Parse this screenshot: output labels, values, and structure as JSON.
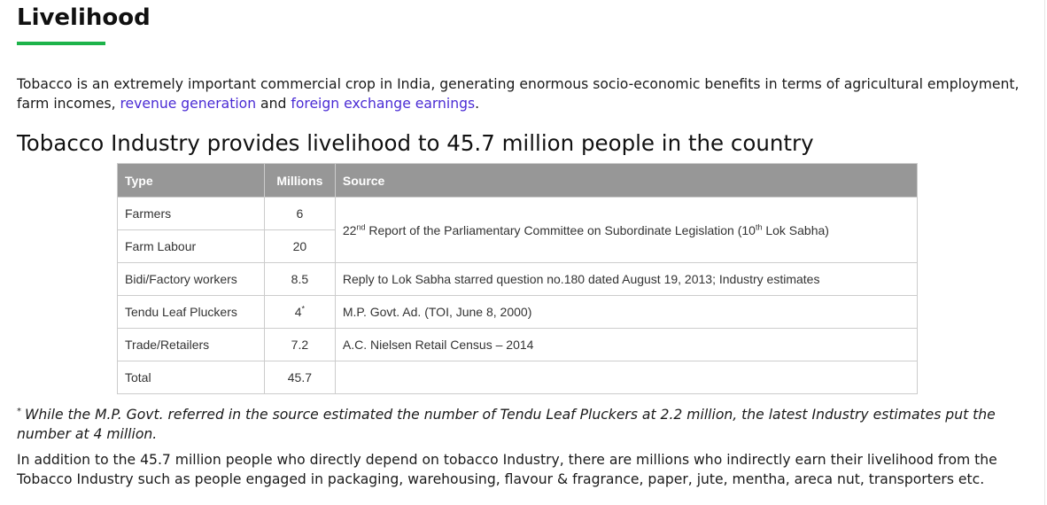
{
  "page": {
    "title": "Livelihood",
    "accent_color": "#1db34a",
    "link_color": "#4a2bd4",
    "intro": {
      "text_before": "Tobacco is an extremely important commercial crop in India, generating enormous socio-economic benefits in terms of agricultural employment, farm incomes, ",
      "link1": "revenue generation",
      "text_between": " and ",
      "link2": "foreign exchange earnings",
      "text_after": "."
    },
    "subtitle": "Tobacco Industry provides livelihood to 45.7 million people in the country"
  },
  "table": {
    "header_color": "#979797",
    "headers": {
      "type": "Type",
      "millions": "Millions",
      "source": "Source"
    },
    "rows": [
      {
        "type": "Farmers",
        "millions": "6"
      },
      {
        "type": "Farm Labour",
        "millions": "20"
      },
      {
        "type": "Bidi/Factory workers",
        "millions": "8.5"
      },
      {
        "type": "Tendu Leaf Pluckers",
        "millions": "4",
        "marker": "*"
      },
      {
        "type": "Trade/Retailers",
        "millions": "7.2"
      },
      {
        "type": "Total",
        "millions": "45.7"
      }
    ],
    "sources": {
      "farmers_labour": {
        "pre": "22",
        "pre_sup": "nd",
        "mid": " Report of the Parliamentary Committee on Subordinate Legislation (10",
        "mid_sup": "th",
        "post": " Lok Sabha)"
      },
      "bidi": "Reply to Lok Sabha starred question no.180 dated August 19, 2013; Industry estimates",
      "tendu": "M.P. Govt. Ad. (TOI, June 8, 2000)",
      "trade": "A.C. Nielsen Retail Census – 2014",
      "total": ""
    }
  },
  "footnote": {
    "marker": "*",
    "text": "While the M.P. Govt. referred in the source estimated the number of Tendu Leaf Pluckers at 2.2 million, the latest Industry estimates put the number at 4 million."
  },
  "closing": "In addition to the 45.7 million people who directly depend on tobacco Industry, there are millions who indirectly earn their livelihood from the Tobacco Industry such as people engaged in packaging, warehousing, flavour & fragrance, paper, jute, mentha, areca nut, transporters etc."
}
